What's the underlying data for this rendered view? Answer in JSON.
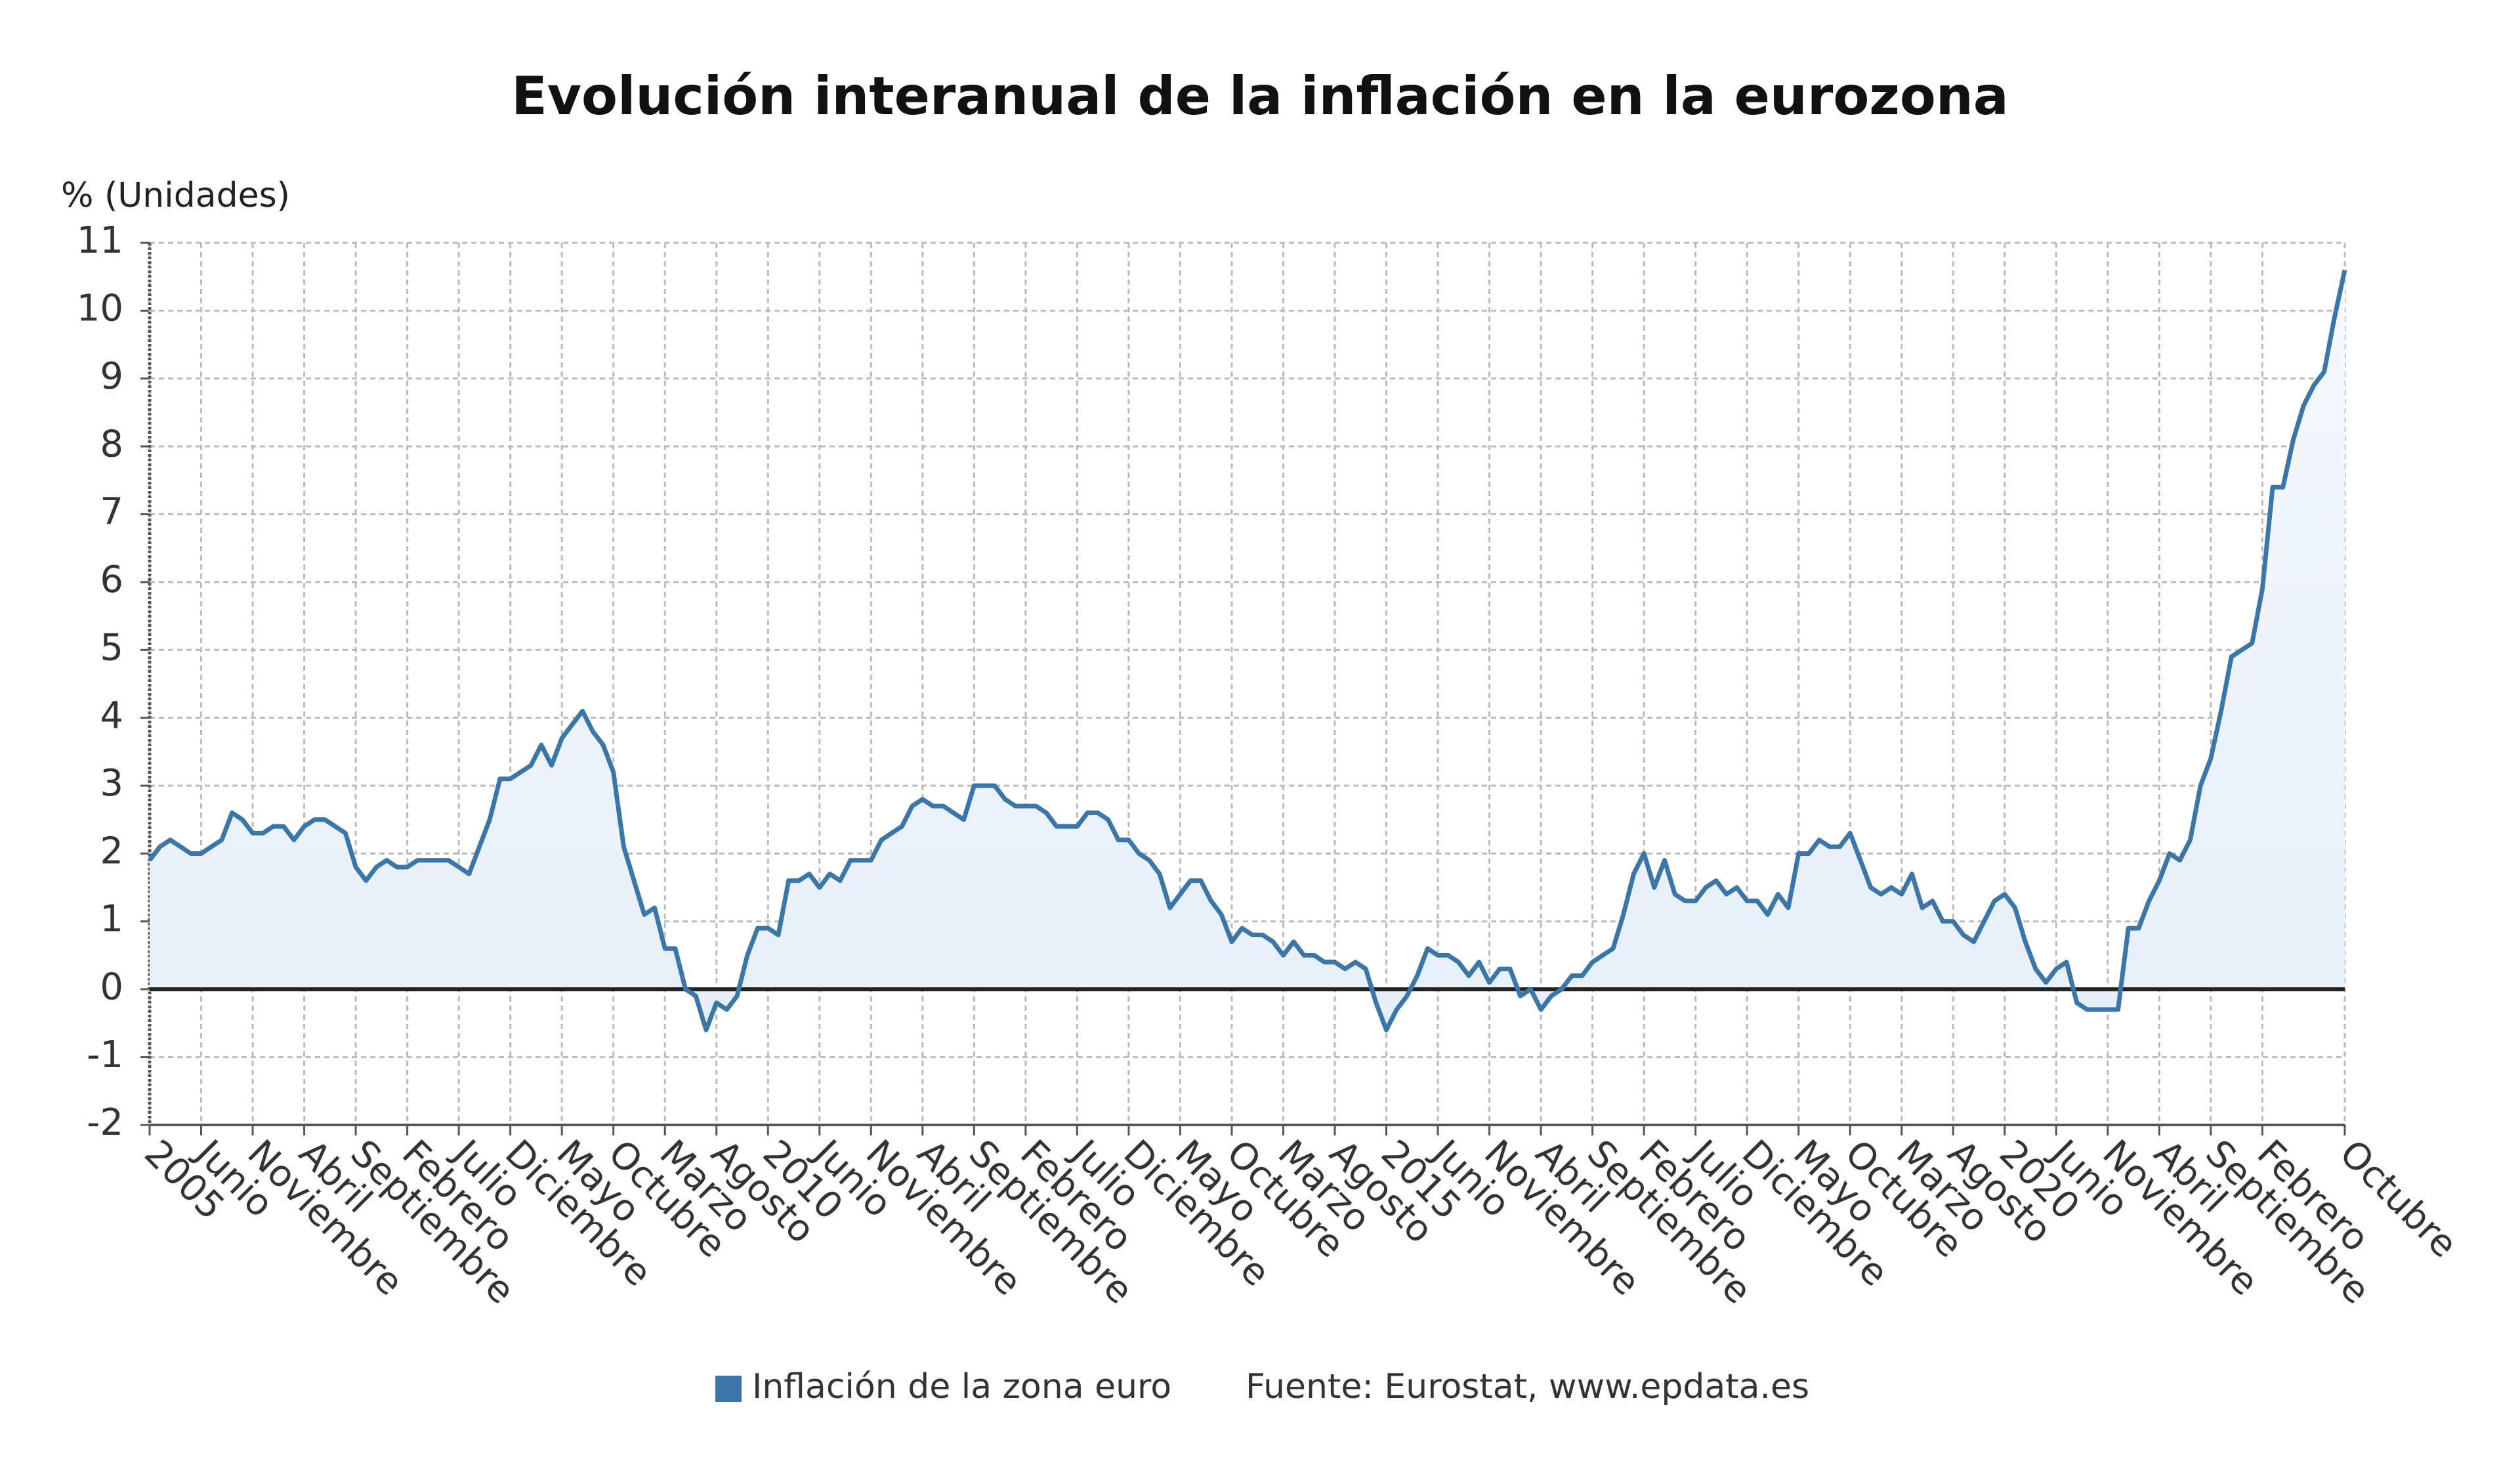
{
  "chart_data": {
    "type": "line",
    "title": "Evolución interanual de la inflación en la eurozona",
    "y_label": "% (Unidades)",
    "source": "Fuente: Eurostat, www.epdata.es",
    "categories": [
      "2005",
      null,
      null,
      null,
      null,
      "Junio",
      null,
      null,
      null,
      null,
      "Noviembre",
      null,
      null,
      null,
      null,
      "Abril",
      null,
      null,
      null,
      null,
      "Septiembre",
      null,
      null,
      null,
      null,
      "Febrero",
      null,
      null,
      null,
      null,
      "Julio",
      null,
      null,
      null,
      null,
      "Diciembre",
      null,
      null,
      null,
      null,
      "Mayo",
      null,
      null,
      null,
      null,
      "Octubre",
      null,
      null,
      null,
      null,
      "Marzo",
      null,
      null,
      null,
      null,
      "Agosto",
      null,
      null,
      null,
      null,
      "2010",
      null,
      null,
      null,
      null,
      "Junio",
      null,
      null,
      null,
      null,
      "Noviembre",
      null,
      null,
      null,
      null,
      "Abril",
      null,
      null,
      null,
      null,
      "Septiembre",
      null,
      null,
      null,
      null,
      "Febrero",
      null,
      null,
      null,
      null,
      "Julio",
      null,
      null,
      null,
      null,
      "Diciembre",
      null,
      null,
      null,
      null,
      "Mayo",
      null,
      null,
      null,
      null,
      "Octubre",
      null,
      null,
      null,
      null,
      "Marzo",
      null,
      null,
      null,
      null,
      "Agosto",
      null,
      null,
      null,
      null,
      "2015",
      null,
      null,
      null,
      null,
      "Junio",
      null,
      null,
      null,
      null,
      "Noviembre",
      null,
      null,
      null,
      null,
      "Abril",
      null,
      null,
      null,
      null,
      "Septiembre",
      null,
      null,
      null,
      null,
      "Febrero",
      null,
      null,
      null,
      null,
      "Julio",
      null,
      null,
      null,
      null,
      "Diciembre",
      null,
      null,
      null,
      null,
      "Mayo",
      null,
      null,
      null,
      null,
      "Octubre",
      null,
      null,
      null,
      null,
      "Marzo",
      null,
      null,
      null,
      null,
      "Agosto",
      null,
      null,
      null,
      null,
      "2020",
      null,
      null,
      null,
      null,
      "Junio",
      null,
      null,
      null,
      null,
      "Noviembre",
      null,
      null,
      null,
      null,
      "Abril",
      null,
      null,
      null,
      null,
      "Septiembre",
      null,
      null,
      null,
      null,
      "Febrero",
      null,
      null,
      null,
      null,
      null,
      null,
      null,
      "Octubre"
    ],
    "series": [
      {
        "name": "Inflación de la zona euro",
        "color": "#3a77a8",
        "values": [
          1.9,
          2.1,
          2.2,
          2.1,
          2.0,
          2.0,
          2.1,
          2.2,
          2.6,
          2.5,
          2.3,
          2.3,
          2.4,
          2.4,
          2.2,
          2.4,
          2.5,
          2.5,
          2.4,
          2.3,
          1.8,
          1.6,
          1.8,
          1.9,
          1.8,
          1.8,
          1.9,
          1.9,
          1.9,
          1.9,
          1.8,
          1.7,
          2.1,
          2.5,
          3.1,
          3.1,
          3.2,
          3.3,
          3.6,
          3.3,
          3.7,
          3.9,
          4.1,
          3.8,
          3.6,
          3.2,
          2.1,
          1.6,
          1.1,
          1.2,
          0.6,
          0.6,
          0.0,
          -0.1,
          -0.6,
          -0.2,
          -0.3,
          -0.1,
          0.5,
          0.9,
          0.9,
          0.8,
          1.6,
          1.6,
          1.7,
          1.5,
          1.7,
          1.6,
          1.9,
          1.9,
          1.9,
          2.2,
          2.3,
          2.4,
          2.7,
          2.8,
          2.7,
          2.7,
          2.6,
          2.5,
          3.0,
          3.0,
          3.0,
          2.8,
          2.7,
          2.7,
          2.7,
          2.6,
          2.4,
          2.4,
          2.4,
          2.6,
          2.6,
          2.5,
          2.2,
          2.2,
          2.0,
          1.9,
          1.7,
          1.2,
          1.4,
          1.6,
          1.6,
          1.3,
          1.1,
          0.7,
          0.9,
          0.8,
          0.8,
          0.7,
          0.5,
          0.7,
          0.5,
          0.5,
          0.4,
          0.4,
          0.3,
          0.4,
          0.3,
          -0.2,
          -0.6,
          -0.3,
          -0.1,
          0.2,
          0.6,
          0.5,
          0.5,
          0.4,
          0.2,
          0.4,
          0.1,
          0.3,
          0.3,
          -0.1,
          0.0,
          -0.3,
          -0.1,
          0.0,
          0.2,
          0.2,
          0.4,
          0.5,
          0.6,
          1.1,
          1.7,
          2.0,
          1.5,
          1.9,
          1.4,
          1.3,
          1.3,
          1.5,
          1.6,
          1.4,
          1.5,
          1.3,
          1.3,
          1.1,
          1.4,
          1.2,
          2.0,
          2.0,
          2.2,
          2.1,
          2.1,
          2.3,
          1.9,
          1.5,
          1.4,
          1.5,
          1.4,
          1.7,
          1.2,
          1.3,
          1.0,
          1.0,
          0.8,
          0.7,
          1.0,
          1.3,
          1.4,
          1.2,
          0.7,
          0.3,
          0.1,
          0.3,
          0.4,
          -0.2,
          -0.3,
          -0.3,
          -0.3,
          -0.3,
          0.9,
          0.9,
          1.3,
          1.6,
          2.0,
          1.9,
          2.2,
          3.0,
          3.4,
          4.1,
          4.9,
          5.0,
          5.1,
          5.9,
          7.4,
          7.4,
          8.1,
          8.6,
          8.9,
          9.1,
          9.9,
          10.6
        ]
      }
    ],
    "ylim": [
      -2,
      11
    ],
    "yticks": [
      -2,
      -1,
      0,
      1,
      2,
      3,
      4,
      5,
      6,
      7,
      8,
      9,
      10,
      11
    ],
    "grid": true
  }
}
